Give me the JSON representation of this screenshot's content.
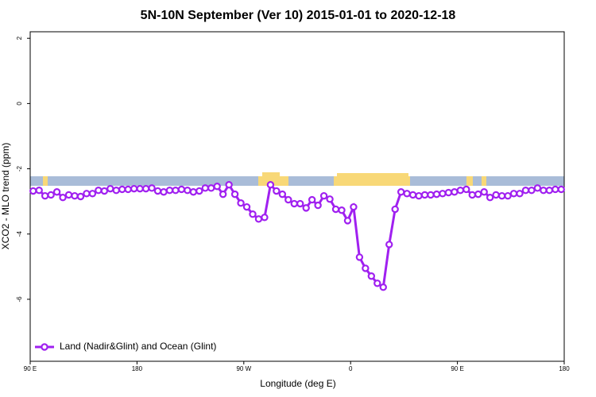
{
  "chart_data": {
    "type": "line",
    "title": "5N-10N September (Ver 10)   2015-01-01 to 2020-12-18",
    "x_label": "Longitude (deg E)",
    "y_label": "XCO2 - MLO trend (ppm)",
    "x": [
      92.5,
      97.5,
      102.5,
      107.5,
      112.5,
      117.5,
      122.5,
      127.5,
      132.5,
      137.5,
      142.5,
      147.5,
      152.5,
      157.5,
      162.5,
      167.5,
      172.5,
      177.5,
      182.5,
      187.5,
      192.5,
      197.5,
      202.5,
      207.5,
      212.5,
      217.5,
      222.5,
      227.5,
      232.5,
      237.5,
      242.5,
      247.5,
      252.5,
      257.5,
      262.5,
      267.5,
      272.5,
      277.5,
      282.5,
      287.5,
      292.5,
      297.5,
      302.5,
      307.5,
      312.5,
      317.5,
      322.5,
      327.5,
      332.5,
      337.5,
      342.5,
      347.5,
      352.5,
      357.5,
      362.5,
      367.5,
      372.5,
      377.5,
      382.5,
      387.5,
      392.5,
      397.5,
      402.5,
      407.5,
      412.5,
      417.5,
      422.5,
      427.5,
      432.5,
      437.5,
      442.5,
      447.5,
      452.5,
      457.5,
      462.5,
      467.5,
      472.5,
      477.5,
      482.5,
      487.5,
      492.5,
      497.5,
      502.5,
      507.5,
      512.5,
      517.5,
      522.5,
      527.5,
      532.5,
      537.5
    ],
    "series": [
      {
        "name": "Land (Nadir&Glint) and Ocean (Glint)",
        "color": "#a020f0",
        "values": [
          -2.68,
          -2.66,
          -2.83,
          -2.8,
          -2.71,
          -2.88,
          -2.8,
          -2.83,
          -2.85,
          -2.76,
          -2.76,
          -2.66,
          -2.68,
          -2.61,
          -2.66,
          -2.63,
          -2.63,
          -2.61,
          -2.61,
          -2.61,
          -2.59,
          -2.68,
          -2.71,
          -2.66,
          -2.66,
          -2.63,
          -2.66,
          -2.71,
          -2.68,
          -2.59,
          -2.59,
          -2.54,
          -2.78,
          -2.49,
          -2.78,
          -3.05,
          -3.17,
          -3.39,
          -3.54,
          -3.49,
          -2.49,
          -2.68,
          -2.78,
          -2.95,
          -3.07,
          -3.07,
          -3.2,
          -2.95,
          -3.12,
          -2.83,
          -2.93,
          -3.24,
          -3.27,
          -3.59,
          -3.17,
          -4.71,
          -5.05,
          -5.29,
          -5.51,
          -5.63,
          -4.32,
          -3.24,
          -2.71,
          -2.76,
          -2.8,
          -2.83,
          -2.8,
          -2.8,
          -2.78,
          -2.76,
          -2.73,
          -2.71,
          -2.66,
          -2.63,
          -2.8,
          -2.78,
          -2.71,
          -2.88,
          -2.8,
          -2.83,
          -2.83,
          -2.76,
          -2.76,
          -2.66,
          -2.66,
          -2.59,
          -2.66,
          -2.66,
          -2.63,
          -2.63
        ]
      }
    ],
    "xlim": [
      90,
      540
    ],
    "xticks": [
      {
        "value": 90,
        "label": "90 E"
      },
      180,
      {
        "value": 270,
        "label": "90 W"
      },
      {
        "value": 360,
        "label": "0"
      },
      {
        "value": 450,
        "label": "90 E"
      },
      {
        "value": 540,
        "label": "180"
      }
    ],
    "ylim": [
      -7.9,
      2.2
    ],
    "yticks": [
      2,
      0,
      -2,
      -4,
      -6
    ],
    "legend": "bottom-left",
    "grid": false
  }
}
